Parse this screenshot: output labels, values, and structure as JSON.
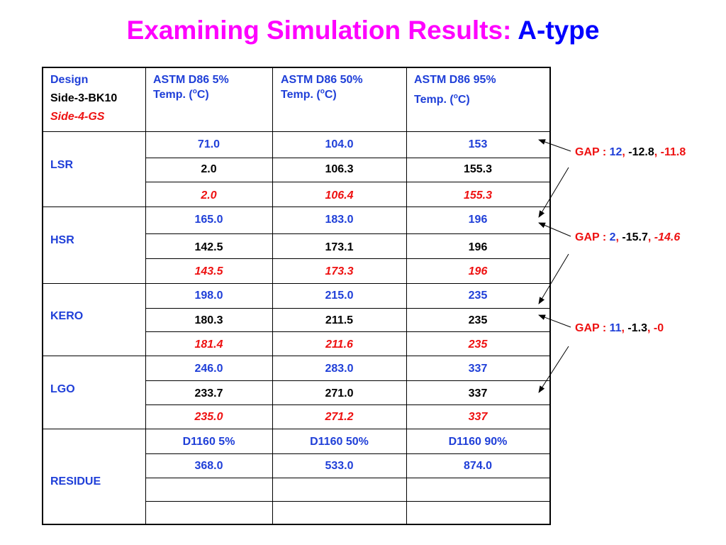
{
  "title": {
    "main": "Examining Simulation Results:",
    "highlight": "A-type"
  },
  "header": {
    "design_label": "Design",
    "design_line2": "Side-3-BK10",
    "design_line3": "Side-4-GS",
    "col1": {
      "line1": "ASTM D86 5%",
      "line2_pre": "Temp. (",
      "sup": "o",
      "line2_post": "C)"
    },
    "col2": {
      "line1": "ASTM D86 50%",
      "line2_pre": "Temp. (",
      "sup": "o",
      "line2_post": "C)"
    },
    "col3": {
      "line1": "ASTM D86 95%",
      "line2_pre": "Temp. (",
      "sup": "o",
      "line2_post": "C)"
    }
  },
  "groups": [
    {
      "name": "LSR",
      "rows": [
        [
          "71.0",
          "104.0",
          "153"
        ],
        [
          "2.0",
          "106.3",
          "155.3"
        ],
        [
          "2.0",
          "106.4",
          "155.3"
        ]
      ]
    },
    {
      "name": "HSR",
      "rows": [
        [
          "165.0",
          "183.0",
          "196"
        ],
        [
          "142.5",
          "173.1",
          "196"
        ],
        [
          "143.5",
          "173.3",
          "196"
        ]
      ]
    },
    {
      "name": "KERO",
      "rows": [
        [
          "198.0",
          "215.0",
          "235"
        ],
        [
          "180.3",
          "211.5",
          "235"
        ],
        [
          "181.4",
          "211.6",
          "235"
        ]
      ]
    },
    {
      "name": "LGO",
      "rows": [
        [
          "246.0",
          "283.0",
          "337"
        ],
        [
          "233.7",
          "271.0",
          "337"
        ],
        [
          "235.0",
          "271.2",
          "337"
        ]
      ]
    },
    {
      "name": "RESIDUE",
      "rows": [
        [
          "D1160 5%",
          "D1160 50%",
          "D1160 90%"
        ],
        [
          "368.0",
          "533.0",
          "874.0"
        ],
        [
          "",
          "",
          ""
        ],
        [
          "",
          "",
          ""
        ]
      ]
    }
  ],
  "notes": [
    {
      "label": "GAP : ",
      "v1": "12",
      "sep1": ",",
      "v2": " -12.8",
      "sep2": ",",
      "v3": " -11.8"
    },
    {
      "label": "GAP : ",
      "v1": "2",
      "sep1": ",",
      "v2": " -15.7",
      "sep2": ",",
      "v3": " -14.6"
    },
    {
      "label": "GAP : ",
      "v1": "11",
      "sep1": ",",
      "v2": " -1.3",
      "sep2": ",",
      "v3": " -0"
    }
  ]
}
